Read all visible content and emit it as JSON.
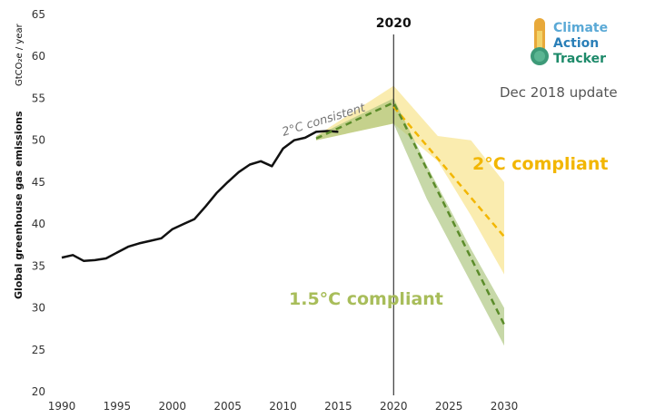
{
  "chart_data": {
    "type": "line",
    "title": "",
    "xlabel": "",
    "ylabel": "Global greenhouse gas emissions",
    "yunit": "GtCO₂e / year",
    "xlim": [
      1990,
      2030
    ],
    "ylim": [
      20,
      65
    ],
    "x_ticks": [
      "1990",
      "1995",
      "2000",
      "2005",
      "2010",
      "2015",
      "2020",
      "2025",
      "2030"
    ],
    "y_ticks": [
      "20",
      "25",
      "30",
      "35",
      "40",
      "45",
      "50",
      "55",
      "60",
      "65"
    ],
    "grid": false,
    "marker_year": {
      "x": 2020,
      "label": "2020"
    },
    "series": [
      {
        "name": "",
        "color": "#111111",
        "style": "solid",
        "points": [
          [
            1990,
            36.0
          ],
          [
            1991,
            36.3
          ],
          [
            1992,
            35.6
          ],
          [
            1993,
            35.7
          ],
          [
            1994,
            35.9
          ],
          [
            1995,
            36.6
          ],
          [
            1996,
            37.3
          ],
          [
            1997,
            37.7
          ],
          [
            1998,
            38.0
          ],
          [
            1999,
            38.3
          ],
          [
            2000,
            39.4
          ],
          [
            2001,
            40.0
          ],
          [
            2002,
            40.6
          ],
          [
            2003,
            42.1
          ],
          [
            2004,
            43.7
          ],
          [
            2005,
            45.0
          ],
          [
            2006,
            46.2
          ],
          [
            2007,
            47.1
          ],
          [
            2008,
            47.5
          ],
          [
            2009,
            46.9
          ],
          [
            2010,
            49.0
          ],
          [
            2011,
            50.0
          ],
          [
            2012,
            50.3
          ],
          [
            2013,
            51.0
          ],
          [
            2014,
            51.1
          ],
          [
            2015,
            51.0
          ]
        ]
      },
      {
        "name": "2°C compliant",
        "color": "#f2b600",
        "style": "dashed",
        "points": [
          [
            2020,
            54.0
          ],
          [
            2030,
            38.5
          ]
        ],
        "band": [
          [
            2013,
            50.0,
            50.5
          ],
          [
            2020,
            52.0,
            56.5
          ],
          [
            2024,
            47.5,
            50.5
          ],
          [
            2027,
            41.0,
            50.0
          ],
          [
            2030,
            34.0,
            45.0
          ]
        ]
      },
      {
        "name": "1.5°C compliant",
        "color": "#5b8c2a",
        "style": "dashed",
        "points": [
          [
            2013,
            50.2
          ],
          [
            2020,
            54.5
          ],
          [
            2030,
            28.0
          ]
        ],
        "band": [
          [
            2013,
            50.0,
            50.5
          ],
          [
            2020,
            52.0,
            55.0
          ],
          [
            2023,
            43.0,
            47.0
          ],
          [
            2027,
            33.0,
            37.0
          ],
          [
            2030,
            25.5,
            30.0
          ]
        ]
      }
    ],
    "annotations": {
      "two_c_label": "2°C compliant",
      "one_five_c_label": "1.5°C compliant",
      "consistent_label": "2°C consistent"
    }
  },
  "logo": {
    "line1": "Climate",
    "line2": "Action",
    "line3": "Tracker",
    "colors": {
      "line1": "#5aa9d6",
      "line2": "#2a7fb8",
      "line3": "#1d8a6a"
    }
  },
  "update_label": "Dec 2018 update"
}
